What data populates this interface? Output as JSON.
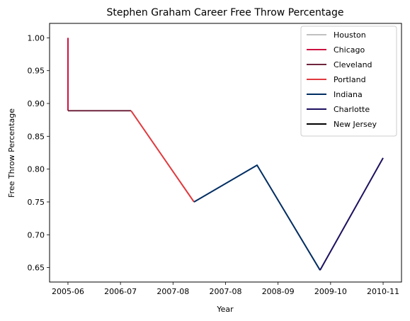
{
  "chart_data": {
    "type": "line",
    "title": "Stephen Graham  Career Free Throw Percentage",
    "xlabel": "Year",
    "ylabel": "Free Throw Percentage",
    "x_ticks": [
      "2005-06",
      "2006-07",
      "2007-08",
      "2007-08",
      "2008-09",
      "2009-10",
      "2010-11"
    ],
    "y_ticks": [
      "0.65",
      "0.70",
      "0.75",
      "0.80",
      "0.85",
      "0.90",
      "0.95",
      "1.00"
    ],
    "ylim": [
      0.628,
      1.022
    ],
    "xlim": [
      -0.35,
      6.35
    ],
    "grid": false,
    "legend_position": "top-right",
    "series": [
      {
        "name": "Houston",
        "color": "#c0c0c0",
        "points": [
          [
            0,
            1.0
          ],
          [
            0,
            0.889
          ]
        ]
      },
      {
        "name": "Chicago",
        "color": "#ce1141",
        "points": [
          [
            0,
            1.0
          ],
          [
            0,
            0.889
          ]
        ]
      },
      {
        "name": "Cleveland",
        "color": "#6f263d",
        "points": [
          [
            0,
            0.889
          ],
          [
            1.2,
            0.889
          ]
        ]
      },
      {
        "name": "Portland",
        "color": "#e03a3e",
        "points": [
          [
            1.2,
            0.889
          ],
          [
            2.4,
            0.75
          ]
        ]
      },
      {
        "name": "Indiana",
        "color": "#002d62",
        "points": [
          [
            2.4,
            0.75
          ],
          [
            3.6,
            0.806
          ],
          [
            4.8,
            0.646
          ]
        ]
      },
      {
        "name": "Charlotte",
        "color": "#1d1160",
        "points": [
          [
            4.8,
            0.646
          ],
          [
            6.0,
            0.817
          ]
        ]
      },
      {
        "name": "New Jersey",
        "color": "#000000",
        "points": []
      }
    ]
  }
}
